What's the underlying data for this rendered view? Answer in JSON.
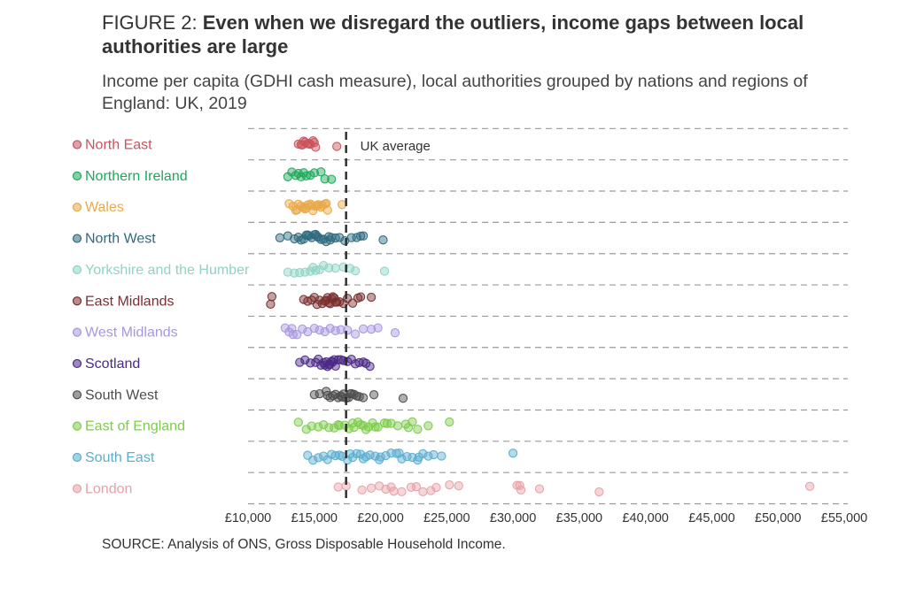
{
  "figure": {
    "prefix": "FIGURE 2: ",
    "title": "Even when we disregard the outliers, income gaps between local authorities are large",
    "subtitle": "Income per capita (GDHI cash measure), local authorities grouped by nations and regions of England: UK, 2019",
    "source": "SOURCE: Analysis of ONS, Gross Disposable Household Income."
  },
  "chart_data": {
    "type": "scatter",
    "xlim": [
      10000,
      55000
    ],
    "x_ticks": [
      10000,
      15000,
      20000,
      25000,
      30000,
      35000,
      40000,
      45000,
      50000,
      55000
    ],
    "x_tick_labels": [
      "£10,000",
      "£15,000",
      "£20,000",
      "£25,000",
      "£30,000",
      "£35,000",
      "£40,000",
      "£45,000",
      "£50,000",
      "£55,000"
    ],
    "grid": true,
    "reference_line": {
      "label": "UK average",
      "value": 17400
    },
    "series": [
      {
        "name": "North East",
        "color": "#c9545e",
        "values": [
          13800,
          14000,
          14200,
          14300,
          14500,
          14700,
          14900,
          15100,
          14100,
          14600,
          15000,
          16700
        ]
      },
      {
        "name": "Northern Ireland",
        "color": "#1fa85a",
        "values": [
          13000,
          13300,
          13600,
          13800,
          14000,
          14200,
          14400,
          14700,
          15000,
          15500,
          15800,
          16300
        ]
      },
      {
        "name": "Wales",
        "color": "#e8a94a",
        "values": [
          13100,
          13400,
          13600,
          13800,
          14000,
          14200,
          14400,
          14500,
          14700,
          14900,
          15100,
          15300,
          15500,
          15600,
          15800,
          14300,
          14800,
          15200,
          15900,
          16000,
          17100,
          13700
        ]
      },
      {
        "name": "North West",
        "color": "#2e6a7e",
        "values": [
          12400,
          13000,
          13500,
          13800,
          14000,
          14200,
          14400,
          14600,
          14800,
          15000,
          15100,
          15300,
          15500,
          15700,
          15900,
          16100,
          16300,
          16600,
          16900,
          17300,
          17800,
          18200,
          18500,
          18700,
          20200,
          14500,
          15200,
          16200
        ]
      },
      {
        "name": "Yorkshire and the Humber",
        "color": "#8fd3c6",
        "values": [
          13000,
          13500,
          13900,
          14300,
          14700,
          15100,
          15400,
          15700,
          16100,
          16600,
          17200,
          17700,
          18100,
          20300,
          14900
        ]
      },
      {
        "name": "East Midlands",
        "color": "#7a2f2f",
        "values": [
          11700,
          11800,
          14200,
          14500,
          14800,
          15000,
          15200,
          15400,
          15600,
          15800,
          15900,
          16000,
          16100,
          16200,
          16300,
          16400,
          16500,
          16600,
          16700,
          16900,
          17200,
          17500,
          17900,
          18300,
          18500,
          19300
        ]
      },
      {
        "name": "West Midlands",
        "color": "#a996de",
        "values": [
          12800,
          13100,
          13400,
          13700,
          14100,
          14500,
          15000,
          15400,
          15800,
          16200,
          16600,
          17000,
          17500,
          18100,
          18700,
          19300,
          19800,
          21100,
          13300
        ]
      },
      {
        "name": "Scotland",
        "color": "#4b2a86",
        "values": [
          13900,
          14300,
          14700,
          15100,
          15300,
          15500,
          15700,
          15800,
          15900,
          16000,
          16100,
          16200,
          16300,
          16400,
          16500,
          16600,
          16800,
          17000,
          17200,
          17500,
          17800,
          18100,
          18400,
          18700,
          18900,
          19200
        ]
      },
      {
        "name": "South West",
        "color": "#4d4d4d",
        "values": [
          15000,
          15400,
          15900,
          16200,
          16400,
          16600,
          16800,
          17000,
          17200,
          17400,
          17600,
          17800,
          18000,
          18200,
          18400,
          18700,
          19500,
          21700,
          16000,
          17100,
          17700
        ]
      },
      {
        "name": "East of England",
        "color": "#7ccc4a",
        "values": [
          13800,
          14400,
          14800,
          15300,
          15700,
          16100,
          16500,
          16900,
          17300,
          17600,
          18000,
          18300,
          18500,
          18700,
          18900,
          19100,
          19400,
          19800,
          20300,
          20800,
          21300,
          21900,
          22400,
          22800,
          23600,
          25200,
          16800,
          17900,
          19600,
          20500,
          22100
        ]
      },
      {
        "name": "South East",
        "color": "#5aaed0",
        "values": [
          14500,
          14900,
          15300,
          15700,
          16000,
          16300,
          16600,
          17100,
          17500,
          17900,
          18200,
          18500,
          18900,
          19200,
          19600,
          20000,
          20400,
          20800,
          21200,
          21600,
          22000,
          22400,
          22800,
          23200,
          23600,
          24000,
          24600,
          30000,
          17700,
          18700,
          19900,
          21400,
          22900,
          16900
        ]
      },
      {
        "name": "London",
        "color": "#e7a1a8",
        "values": [
          16800,
          17400,
          18600,
          19300,
          19900,
          20400,
          21000,
          21600,
          22300,
          23200,
          23800,
          24200,
          25200,
          25900,
          30300,
          30600,
          32000,
          36500,
          52400,
          20800,
          22700,
          30500
        ]
      }
    ]
  }
}
